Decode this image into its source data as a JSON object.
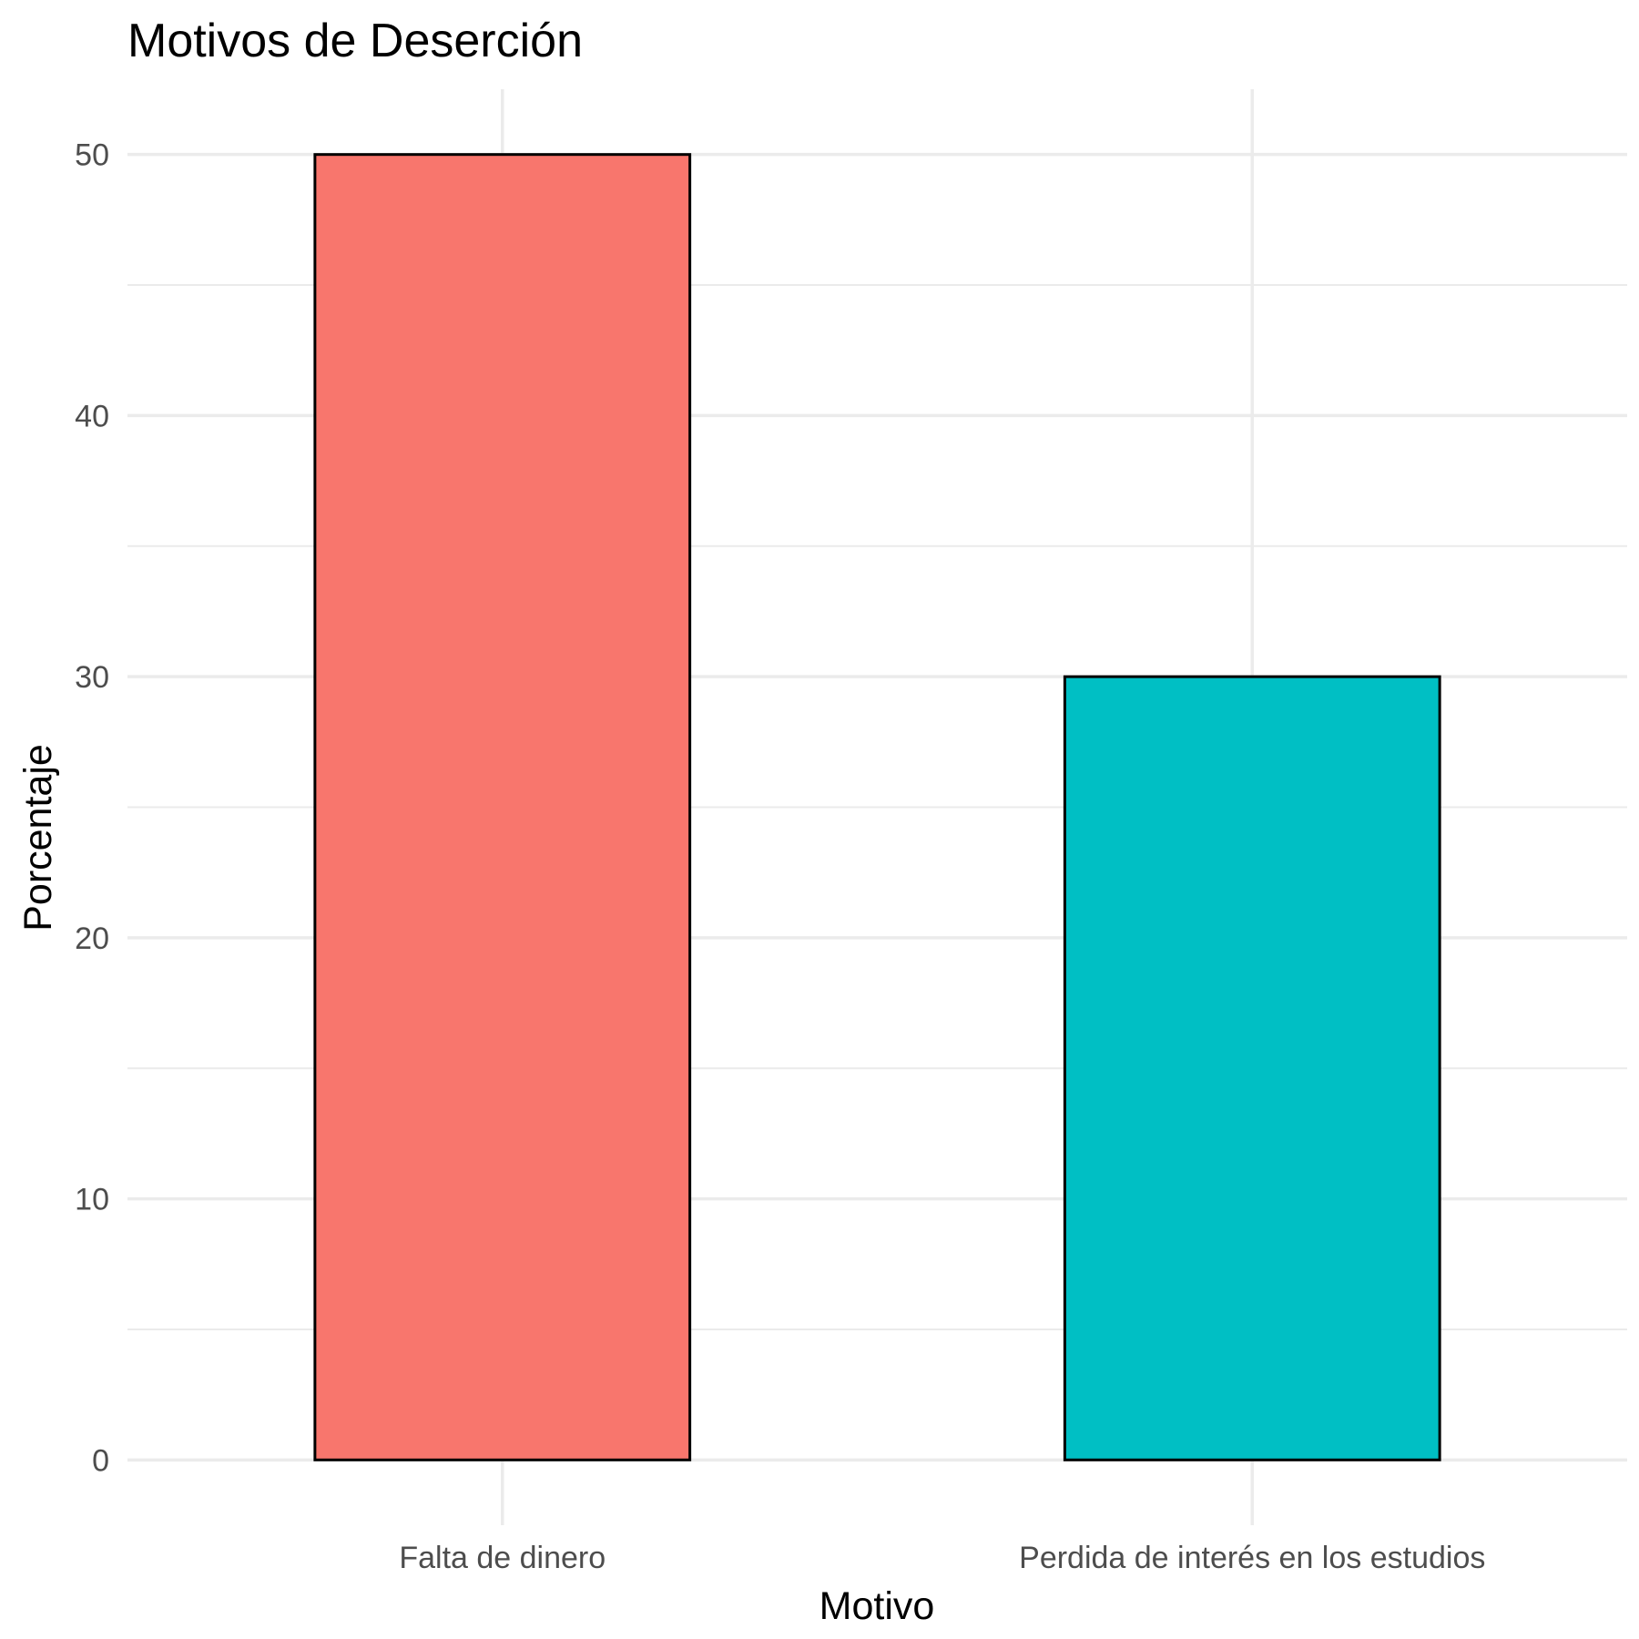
{
  "chart_data": {
    "type": "bar",
    "title": "Motivos de Deserción",
    "xlabel": "Motivo",
    "ylabel": "Porcentaje",
    "categories": [
      "Falta de dinero",
      "Perdida de interés en los estudios"
    ],
    "values": [
      50,
      30
    ],
    "colors": [
      "#F8766D",
      "#00BFC4"
    ],
    "bar_outline_color": "#000000",
    "ylim": [
      -2.5,
      52.5
    ],
    "yticks": [
      0,
      10,
      20,
      30,
      40,
      50
    ],
    "ytick_labels": [
      "0",
      "10",
      "20",
      "30",
      "40",
      "50"
    ],
    "y_minor_ticks": [
      5,
      15,
      25,
      35,
      45
    ],
    "grid": true,
    "legend": "none"
  }
}
